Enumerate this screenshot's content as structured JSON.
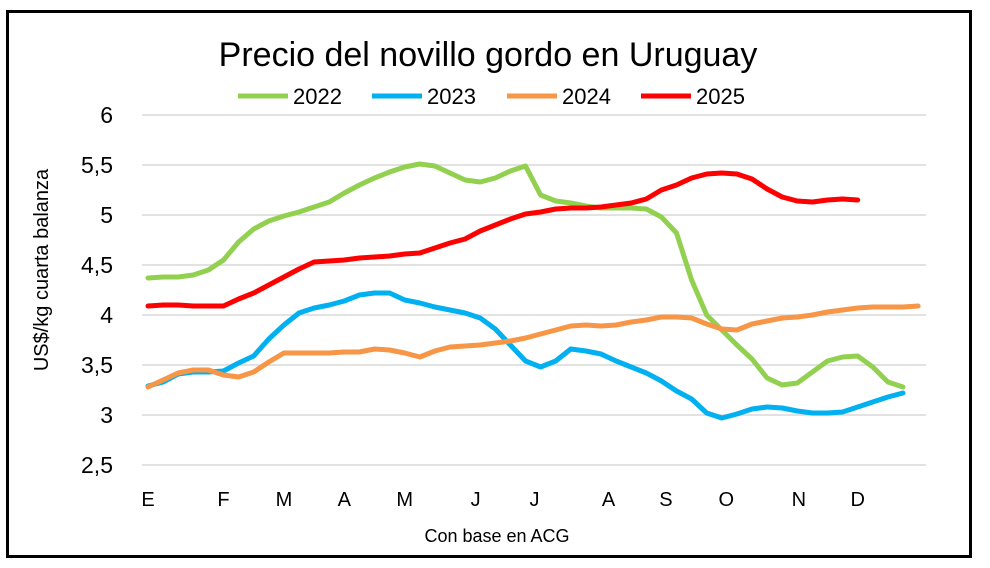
{
  "chart_data": {
    "type": "line",
    "title": "Precio del novillo gordo en Uruguay",
    "xlabel": "Con base en ACG",
    "ylabel": "US$/kg cuarta balanza",
    "ylim": [
      2.5,
      6
    ],
    "yticks": [
      "2,5",
      "3",
      "3,5",
      "4",
      "4,5",
      "5",
      "5,5",
      "6"
    ],
    "ytick_values": [
      2.5,
      3,
      3.5,
      4,
      4.5,
      5,
      5.5,
      6
    ],
    "x_unit": "week index (0-51)",
    "xlim": [
      0,
      51
    ],
    "xticks": [
      {
        "label": "E",
        "week": 0
      },
      {
        "label": "F",
        "week": 5
      },
      {
        "label": "M",
        "week": 9
      },
      {
        "label": "A",
        "week": 13
      },
      {
        "label": "M",
        "week": 17
      },
      {
        "label": "J",
        "week": 21.7
      },
      {
        "label": "J",
        "week": 25.6
      },
      {
        "label": "A",
        "week": 30.5
      },
      {
        "label": "S",
        "week": 34.3
      },
      {
        "label": "O",
        "week": 38.3
      },
      {
        "label": "N",
        "week": 43.1
      },
      {
        "label": "D",
        "week": 47
      }
    ],
    "grid": true,
    "legend_position": "top",
    "series": [
      {
        "name": "2022",
        "color": "#92D050",
        "values": [
          4.37,
          4.38,
          4.38,
          4.4,
          4.45,
          4.55,
          4.73,
          4.86,
          4.94,
          4.99,
          5.03,
          5.08,
          5.13,
          5.22,
          5.3,
          5.37,
          5.43,
          5.48,
          5.51,
          5.49,
          5.42,
          5.35,
          5.33,
          5.37,
          5.44,
          5.49,
          5.2,
          5.14,
          5.12,
          5.09,
          5.07,
          5.07,
          5.07,
          5.06,
          4.98,
          4.82,
          4.35,
          4.0,
          3.85,
          3.7,
          3.56,
          3.37,
          3.3,
          3.32,
          3.43,
          3.54,
          3.58,
          3.59,
          3.48,
          3.33,
          3.28
        ]
      },
      {
        "name": "2023",
        "color": "#00B0F0",
        "values": [
          3.29,
          3.33,
          3.41,
          3.43,
          3.43,
          3.44,
          3.52,
          3.59,
          3.76,
          3.9,
          4.02,
          4.07,
          4.1,
          4.14,
          4.2,
          4.22,
          4.22,
          4.15,
          4.12,
          4.08,
          4.05,
          4.02,
          3.97,
          3.86,
          3.7,
          3.54,
          3.48,
          3.54,
          3.66,
          3.64,
          3.61,
          3.54,
          3.48,
          3.42,
          3.34,
          3.24,
          3.16,
          3.02,
          2.97,
          3.01,
          3.06,
          3.08,
          3.07,
          3.04,
          3.02,
          3.02,
          3.03,
          3.08,
          3.13,
          3.18,
          3.22
        ]
      },
      {
        "name": "2024",
        "color": "#F79646",
        "values": [
          3.28,
          3.35,
          3.42,
          3.45,
          3.45,
          3.4,
          3.38,
          3.43,
          3.53,
          3.62,
          3.62,
          3.62,
          3.62,
          3.63,
          3.63,
          3.66,
          3.65,
          3.62,
          3.58,
          3.64,
          3.68,
          3.69,
          3.7,
          3.72,
          3.74,
          3.77,
          3.81,
          3.85,
          3.89,
          3.9,
          3.89,
          3.9,
          3.93,
          3.95,
          3.98,
          3.98,
          3.97,
          3.91,
          3.86,
          3.85,
          3.91,
          3.94,
          3.97,
          3.98,
          4.0,
          4.03,
          4.05,
          4.07,
          4.08,
          4.08,
          4.08,
          4.09
        ]
      },
      {
        "name": "2025",
        "color": "#FF0000",
        "values": [
          4.09,
          4.1,
          4.1,
          4.09,
          4.09,
          4.09,
          4.16,
          4.22,
          4.3,
          4.38,
          4.46,
          4.53,
          4.54,
          4.55,
          4.57,
          4.58,
          4.59,
          4.61,
          4.62,
          4.67,
          4.72,
          4.76,
          4.84,
          4.9,
          4.96,
          5.01,
          5.03,
          5.06,
          5.07,
          5.07,
          5.08,
          5.1,
          5.12,
          5.16,
          5.25,
          5.3,
          5.37,
          5.41,
          5.42,
          5.41,
          5.36,
          5.26,
          5.18,
          5.14,
          5.13,
          5.15,
          5.16,
          5.15
        ]
      }
    ]
  }
}
